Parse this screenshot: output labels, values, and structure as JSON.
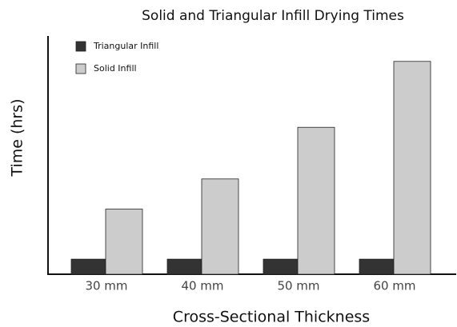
{
  "chart_data": {
    "type": "bar",
    "title": "Solid and Triangular Infill Drying Times",
    "x_label": "Cross-Sectional Thickness",
    "y_label": "Time (hrs)",
    "categories": [
      "30 mm",
      "40 mm",
      "50 mm",
      "60 mm"
    ],
    "series": [
      {
        "name": "Triangular Infill",
        "color": "#333333",
        "values": [
          1.9,
          1.9,
          1.9,
          1.9
        ]
      },
      {
        "name": "Solid Infill",
        "color": "#cccccc",
        "values": [
          8.2,
          12.0,
          18.5,
          26.8
        ]
      }
    ],
    "ylim": [
      0,
      30
    ],
    "grid": false,
    "legend": "upper left"
  }
}
